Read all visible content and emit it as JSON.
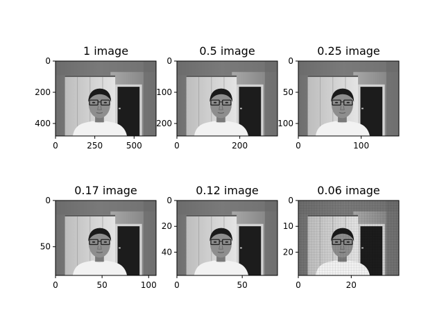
{
  "chart_data": [
    {
      "type": "heatmap",
      "title": "1 image",
      "width": 640,
      "height": 480,
      "xticks": [
        0,
        250,
        500
      ],
      "yticks": [
        0,
        200,
        400
      ]
    },
    {
      "type": "heatmap",
      "title": "0.5 image",
      "width": 320,
      "height": 240,
      "xticks": [
        0,
        200
      ],
      "yticks": [
        0,
        100,
        200
      ]
    },
    {
      "type": "heatmap",
      "title": "0.25 image",
      "width": 160,
      "height": 120,
      "xticks": [
        0,
        100
      ],
      "yticks": [
        0,
        50,
        100
      ]
    },
    {
      "type": "heatmap",
      "title": "0.17 image",
      "width": 108,
      "height": 81,
      "xticks": [
        0,
        50,
        100
      ],
      "yticks": [
        0,
        50
      ]
    },
    {
      "type": "heatmap",
      "title": "0.12 image",
      "width": 77,
      "height": 58,
      "xticks": [
        0,
        50
      ],
      "yticks": [
        0,
        20,
        40
      ]
    },
    {
      "type": "heatmap",
      "title": "0.06 image",
      "width": 38,
      "height": 29,
      "xticks": [
        0,
        20
      ],
      "yticks": [
        0,
        10,
        20
      ]
    }
  ]
}
